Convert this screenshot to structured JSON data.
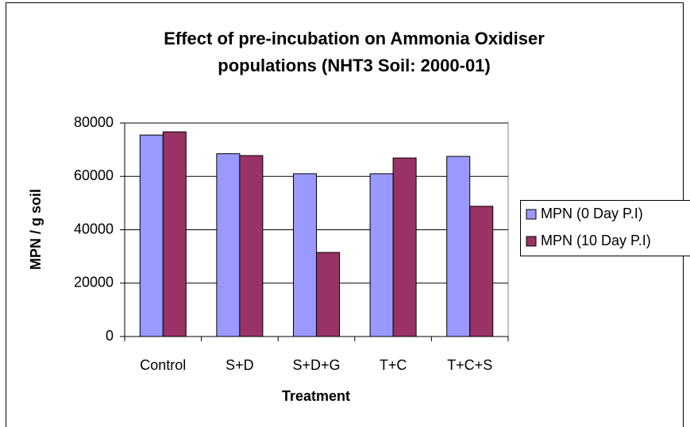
{
  "chart_data": {
    "type": "bar",
    "title": [
      "Effect of pre-incubation on Ammonia Oxidiser",
      "populations (NHT3 Soil: 2000-01)"
    ],
    "x_label": "Treatment",
    "y_label": "MPN / g soil",
    "categories": [
      "Control",
      "S+D",
      "S+D+G",
      "T+C",
      "T+C+S"
    ],
    "series": [
      {
        "name": "MPN (0 Day P.I)",
        "color": "#9999ff",
        "values": [
          75500,
          68500,
          61000,
          61000,
          67500
        ]
      },
      {
        "name": "MPN (10 Day P.I)",
        "color": "#993366",
        "values": [
          76700,
          67800,
          31500,
          66900,
          48800
        ]
      }
    ],
    "ylim": [
      0,
      80000
    ],
    "yticks": [
      0,
      20000,
      40000,
      60000,
      80000
    ],
    "grid": true,
    "legend": "right"
  }
}
